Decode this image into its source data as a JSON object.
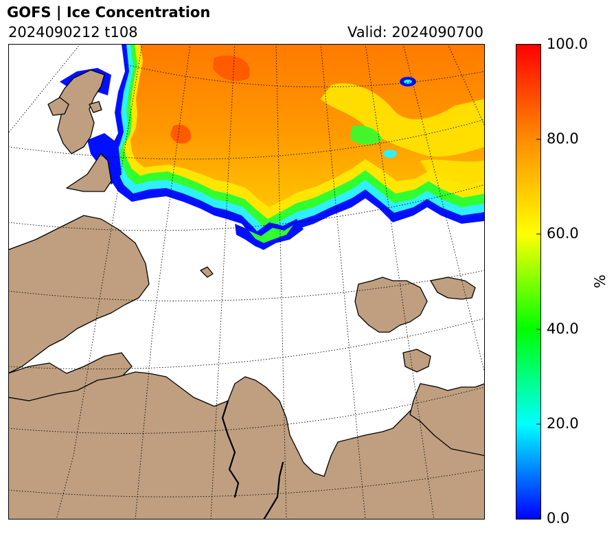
{
  "header": {
    "title": "GOFS  |  Ice Concentration",
    "run": "2024090212 t108",
    "valid": "Valid: 2024090700"
  },
  "colorbar": {
    "unit": "%",
    "ticks": [
      "0.0",
      "20.0",
      "40.0",
      "60.0",
      "80.0",
      "100.0"
    ],
    "colors": [
      "#0000ff",
      "#00ffff",
      "#00ff00",
      "#ffff00",
      "#ff8c00",
      "#ff0000"
    ]
  },
  "map": {
    "land_color": "#bf9f80",
    "ocean_color": "#ffffff",
    "ice_colors": {
      "edge": "#0010ff",
      "low": "#00f0ff",
      "mid": "#20ff20",
      "high": "#ffe600",
      "pack": "#ff8a00",
      "max": "#ff4a00"
    }
  }
}
